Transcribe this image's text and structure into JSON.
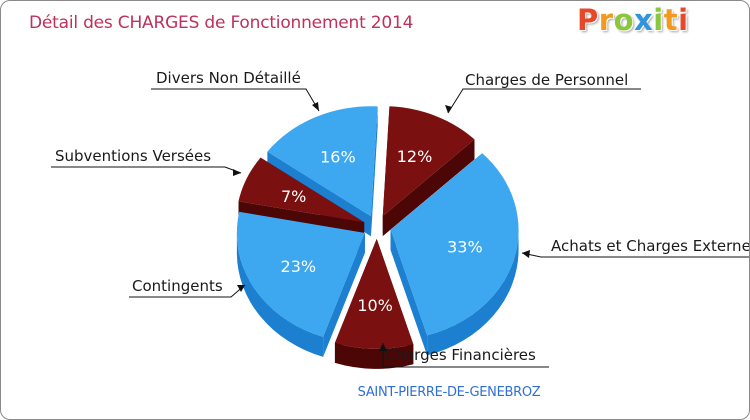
{
  "colors": {
    "title": "#c0305a",
    "blue_top": "#3da7f0",
    "blue_side": "#1c7fcf",
    "red_top": "#7b1010",
    "red_side": "#4c0606",
    "label_text": "#1a1a1a",
    "pct_text": "#ffffff",
    "place": "#2f6fd6",
    "leader": "#111111"
  },
  "logo": {
    "letters": [
      "P",
      "r",
      "o",
      "x",
      "i",
      "t",
      "i"
    ],
    "colors": [
      "#e8482a",
      "#f39a1e",
      "#8cc63f",
      "#2f96dd",
      "#8cc63f",
      "#f39a1e",
      "#e8482a"
    ]
  },
  "chart_data": {
    "type": "pie",
    "title": "Détail des CHARGES de Fonctionnement 2014",
    "subtitle": "SAINT-PIERRE-DE-GENEBROZ",
    "slices": [
      {
        "name": "Charges de Personnel",
        "percent": 12,
        "label": "12%",
        "color": "red"
      },
      {
        "name": "Achats et Charges Externes",
        "percent": 33,
        "label": "33%",
        "color": "blue"
      },
      {
        "name": "Charges Financières",
        "percent": 10,
        "label": "10%",
        "color": "red"
      },
      {
        "name": "Contingents",
        "percent": 23,
        "label": "23%",
        "color": "blue"
      },
      {
        "name": "Subventions Versées",
        "percent": 7,
        "label": "7%",
        "color": "red"
      },
      {
        "name": "Divers Non Détaillé",
        "percent": 16,
        "label": "16%",
        "color": "blue"
      }
    ],
    "labels": {
      "personnel": "Charges de Personnel",
      "achats": "Achats et Charges Externes",
      "financieres": "Charges Financières",
      "contingents": "Contingents",
      "subventions": "Subventions Versées",
      "divers": "Divers Non Détaillé"
    }
  }
}
